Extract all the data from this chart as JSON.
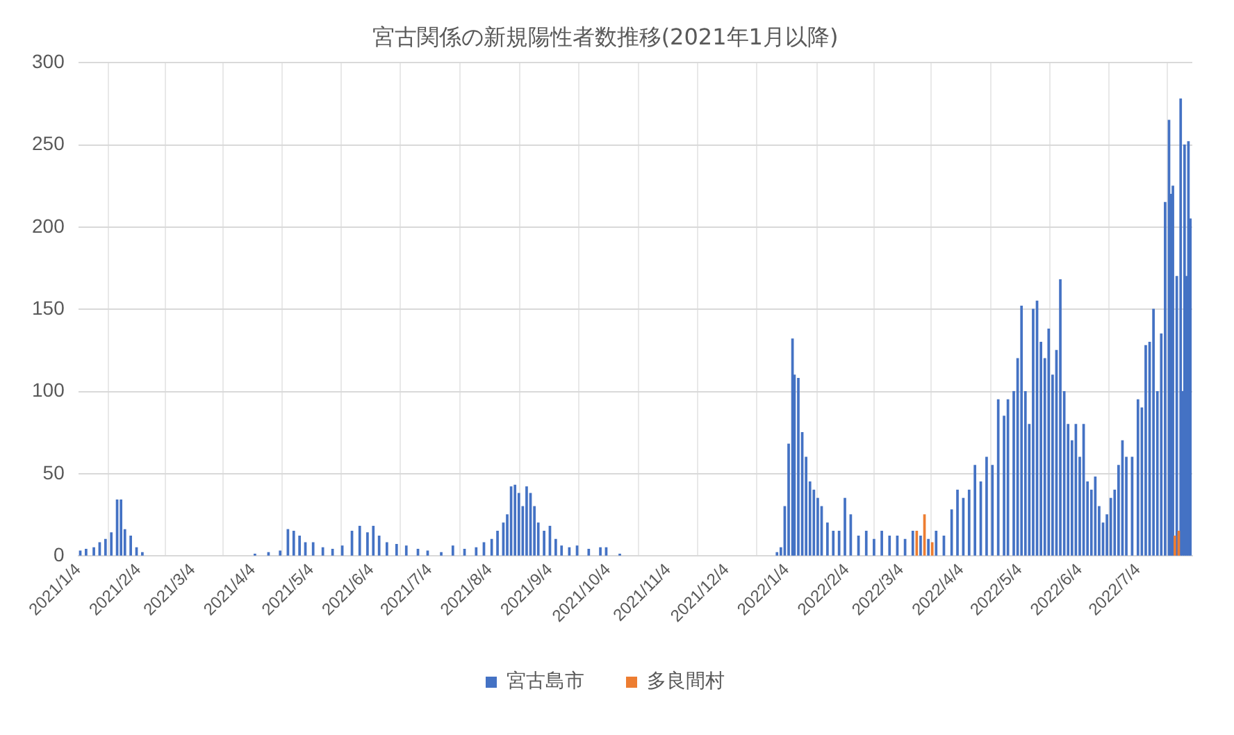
{
  "chart_data": {
    "type": "bar",
    "title": "宮古関係の新規陽性者数推移(2021年1月以降)",
    "xlim": [
      "2021-01-04",
      "2022-08-01"
    ],
    "xticks": [
      {
        "value": "2021-01-04",
        "label": "2021/1/4"
      },
      {
        "value": "2021-02-04",
        "label": "2021/2/4"
      },
      {
        "value": "2021-03-04",
        "label": "2021/3/4"
      },
      {
        "value": "2021-04-04",
        "label": "2021/4/4"
      },
      {
        "value": "2021-05-04",
        "label": "2021/5/4"
      },
      {
        "value": "2021-06-04",
        "label": "2021/6/4"
      },
      {
        "value": "2021-07-04",
        "label": "2021/7/4"
      },
      {
        "value": "2021-08-04",
        "label": "2021/8/4"
      },
      {
        "value": "2021-09-04",
        "label": "2021/9/4"
      },
      {
        "value": "2021-10-04",
        "label": "2021/10/4"
      },
      {
        "value": "2021-11-04",
        "label": "2021/11/4"
      },
      {
        "value": "2021-12-04",
        "label": "2021/12/4"
      },
      {
        "value": "2022-01-04",
        "label": "2022/1/4"
      },
      {
        "value": "2022-02-04",
        "label": "2022/2/4"
      },
      {
        "value": "2022-03-04",
        "label": "2022/3/4"
      },
      {
        "value": "2022-04-04",
        "label": "2022/4/4"
      },
      {
        "value": "2022-05-04",
        "label": "2022/5/4"
      },
      {
        "value": "2022-06-04",
        "label": "2022/6/4"
      },
      {
        "value": "2022-07-04",
        "label": "2022/7/4"
      }
    ],
    "ylim": [
      0,
      300
    ],
    "yticks": [
      0,
      50,
      100,
      150,
      200,
      250,
      300
    ],
    "grid": true,
    "legend": "bottom",
    "series": [
      {
        "name": "宮古島市",
        "color": "#4472c4",
        "x": [
          "2021-01-05",
          "2021-01-08",
          "2021-01-12",
          "2021-01-15",
          "2021-01-18",
          "2021-01-21",
          "2021-01-24",
          "2021-01-26",
          "2021-01-28",
          "2021-01-31",
          "2021-02-03",
          "2021-02-06",
          "2021-04-05",
          "2021-04-12",
          "2021-04-18",
          "2021-04-22",
          "2021-04-25",
          "2021-04-28",
          "2021-05-01",
          "2021-05-05",
          "2021-05-10",
          "2021-05-15",
          "2021-05-20",
          "2021-05-25",
          "2021-05-29",
          "2021-06-02",
          "2021-06-05",
          "2021-06-08",
          "2021-06-12",
          "2021-06-17",
          "2021-06-22",
          "2021-06-28",
          "2021-07-03",
          "2021-07-10",
          "2021-07-16",
          "2021-07-22",
          "2021-07-28",
          "2021-08-01",
          "2021-08-05",
          "2021-08-08",
          "2021-08-11",
          "2021-08-13",
          "2021-08-15",
          "2021-08-17",
          "2021-08-19",
          "2021-08-21",
          "2021-08-23",
          "2021-08-25",
          "2021-08-27",
          "2021-08-29",
          "2021-09-01",
          "2021-09-04",
          "2021-09-07",
          "2021-09-10",
          "2021-09-14",
          "2021-09-18",
          "2021-09-24",
          "2021-09-30",
          "2021-10-03",
          "2021-10-10",
          "2021-12-30",
          "2022-01-01",
          "2022-01-03",
          "2022-01-05",
          "2022-01-07",
          "2022-01-08",
          "2022-01-10",
          "2022-01-12",
          "2022-01-14",
          "2022-01-16",
          "2022-01-18",
          "2022-01-20",
          "2022-01-22",
          "2022-01-25",
          "2022-01-28",
          "2022-01-31",
          "2022-02-03",
          "2022-02-06",
          "2022-02-10",
          "2022-02-14",
          "2022-02-18",
          "2022-02-22",
          "2022-02-26",
          "2022-03-02",
          "2022-03-06",
          "2022-03-10",
          "2022-03-14",
          "2022-03-18",
          "2022-03-22",
          "2022-03-26",
          "2022-03-30",
          "2022-04-02",
          "2022-04-05",
          "2022-04-08",
          "2022-04-11",
          "2022-04-14",
          "2022-04-17",
          "2022-04-20",
          "2022-04-23",
          "2022-04-26",
          "2022-04-28",
          "2022-05-01",
          "2022-05-03",
          "2022-05-05",
          "2022-05-07",
          "2022-05-09",
          "2022-05-11",
          "2022-05-13",
          "2022-05-15",
          "2022-05-17",
          "2022-05-19",
          "2022-05-21",
          "2022-05-23",
          "2022-05-25",
          "2022-05-27",
          "2022-05-29",
          "2022-05-31",
          "2022-06-02",
          "2022-06-04",
          "2022-06-06",
          "2022-06-08",
          "2022-06-10",
          "2022-06-12",
          "2022-06-14",
          "2022-06-16",
          "2022-06-18",
          "2022-06-20",
          "2022-06-22",
          "2022-06-24",
          "2022-06-26",
          "2022-06-28",
          "2022-07-01",
          "2022-07-04",
          "2022-07-06",
          "2022-07-08",
          "2022-07-10",
          "2022-07-12",
          "2022-07-14",
          "2022-07-16",
          "2022-07-18",
          "2022-07-20",
          "2022-07-21",
          "2022-07-22",
          "2022-07-24",
          "2022-07-26",
          "2022-07-27",
          "2022-07-28",
          "2022-07-29",
          "2022-07-30",
          "2022-07-31"
        ],
        "values": [
          3,
          4,
          5,
          8,
          10,
          14,
          34,
          34,
          16,
          12,
          5,
          2,
          1,
          2,
          3,
          16,
          15,
          12,
          8,
          8,
          5,
          4,
          6,
          15,
          18,
          14,
          18,
          12,
          8,
          7,
          6,
          4,
          3,
          2,
          6,
          4,
          5,
          8,
          10,
          15,
          20,
          25,
          42,
          43,
          38,
          30,
          42,
          38,
          30,
          20,
          15,
          18,
          10,
          6,
          5,
          6,
          4,
          5,
          5,
          1,
          2,
          5,
          30,
          68,
          132,
          110,
          108,
          75,
          60,
          45,
          40,
          35,
          30,
          20,
          15,
          15,
          35,
          25,
          12,
          15,
          10,
          15,
          12,
          12,
          10,
          15,
          12,
          10,
          15,
          12,
          28,
          40,
          35,
          40,
          55,
          45,
          60,
          55,
          95,
          85,
          95,
          100,
          120,
          152,
          100,
          80,
          150,
          155,
          130,
          120,
          138,
          110,
          125,
          168,
          100,
          80,
          70,
          80,
          60,
          80,
          45,
          40,
          48,
          30,
          20,
          25,
          35,
          40,
          55,
          70,
          60,
          60,
          95,
          90,
          128,
          130,
          150,
          100,
          135,
          215,
          265,
          220,
          225,
          170,
          278,
          100,
          250,
          170,
          252,
          205
        ]
      },
      {
        "name": "多良間村",
        "color": "#ed7d31",
        "x": [
          "2022-03-12",
          "2022-03-16",
          "2022-03-20",
          "2022-07-23",
          "2022-07-25"
        ],
        "values": [
          15,
          25,
          8,
          12,
          15
        ]
      }
    ]
  }
}
